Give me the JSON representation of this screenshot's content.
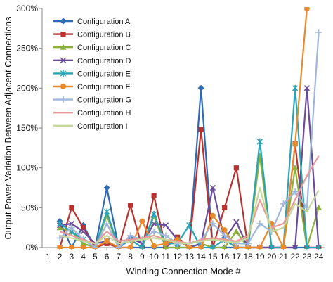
{
  "chart_data": {
    "type": "line",
    "title": "",
    "xlabel": "Winding Connection Mode #",
    "ylabel": "Output Power Variation Between Adjacent Connections",
    "x": [
      1,
      2,
      3,
      4,
      5,
      6,
      7,
      8,
      9,
      10,
      11,
      12,
      13,
      14,
      15,
      16,
      17,
      18,
      19,
      20,
      21,
      22,
      23,
      24
    ],
    "x_ticks": [
      "1",
      "2",
      "3",
      "4",
      "5",
      "6",
      "7",
      "8",
      "9",
      "10",
      "11",
      "12",
      "13",
      "14",
      "15",
      "16",
      "17",
      "18",
      "19",
      "20",
      "21",
      "22",
      "23",
      "24"
    ],
    "ylim": [
      0,
      300
    ],
    "y_ticks": [
      "0%",
      "50%",
      "100%",
      "150%",
      "200%",
      "250%",
      "300%"
    ],
    "y_tick_values": [
      0,
      50,
      100,
      150,
      200,
      250,
      300
    ],
    "grid": false,
    "legend_position": "top-left",
    "series": [
      {
        "name": "Configuration A",
        "color": "#2e6bb2",
        "marker": "diamond",
        "values": [
          null,
          33,
          0,
          28,
          0,
          75,
          0,
          0,
          0,
          0,
          0,
          0,
          0,
          200,
          0,
          0,
          0,
          0,
          0,
          0,
          0,
          0,
          0,
          0
        ]
      },
      {
        "name": "Configuration B",
        "color": "#b8312f",
        "marker": "square",
        "values": [
          null,
          0,
          50,
          25,
          0,
          5,
          0,
          53,
          0,
          65,
          0,
          13,
          0,
          148,
          0,
          50,
          100,
          0,
          0,
          0,
          0,
          130,
          0,
          0
        ]
      },
      {
        "name": "Configuration C",
        "color": "#8bb13b",
        "marker": "triangle",
        "values": [
          null,
          25,
          20,
          5,
          0,
          40,
          0,
          10,
          0,
          40,
          0,
          0,
          0,
          5,
          0,
          0,
          20,
          0,
          115,
          0,
          0,
          100,
          0,
          50
        ]
      },
      {
        "name": "Configuration D",
        "color": "#6a4b9c",
        "marker": "x",
        "values": [
          null,
          28,
          30,
          20,
          5,
          8,
          0,
          12,
          5,
          30,
          28,
          10,
          0,
          5,
          75,
          10,
          32,
          0,
          0,
          0,
          0,
          0,
          200,
          0
        ]
      },
      {
        "name": "Configuration E",
        "color": "#2aa3b7",
        "marker": "star",
        "values": [
          null,
          30,
          20,
          10,
          0,
          45,
          0,
          10,
          0,
          42,
          5,
          5,
          28,
          0,
          0,
          10,
          0,
          0,
          133,
          0,
          0,
          200,
          0,
          0
        ]
      },
      {
        "name": "Configuration F",
        "color": "#e8892b",
        "marker": "circle",
        "values": [
          null,
          0,
          0,
          0,
          0,
          8,
          0,
          0,
          33,
          2,
          5,
          10,
          0,
          0,
          40,
          22,
          0,
          0,
          0,
          30,
          0,
          130,
          300,
          null
        ]
      },
      {
        "name": "Configuration G",
        "color": "#9fb7dc",
        "marker": "plus",
        "values": [
          null,
          12,
          25,
          10,
          0,
          30,
          0,
          15,
          10,
          20,
          15,
          5,
          5,
          8,
          30,
          15,
          5,
          5,
          30,
          20,
          55,
          70,
          50,
          270
        ]
      },
      {
        "name": "Configuration H",
        "color": "#e79a98",
        "marker": "none",
        "values": [
          null,
          20,
          15,
          10,
          5,
          20,
          8,
          10,
          12,
          15,
          10,
          8,
          5,
          10,
          12,
          10,
          8,
          15,
          60,
          25,
          30,
          60,
          90,
          115
        ]
      },
      {
        "name": "Configuration I",
        "color": "#c5d89a",
        "marker": "none",
        "values": [
          null,
          15,
          12,
          8,
          5,
          15,
          5,
          8,
          10,
          12,
          10,
          6,
          5,
          8,
          10,
          8,
          6,
          12,
          75,
          20,
          25,
          55,
          45,
          72
        ]
      }
    ]
  }
}
